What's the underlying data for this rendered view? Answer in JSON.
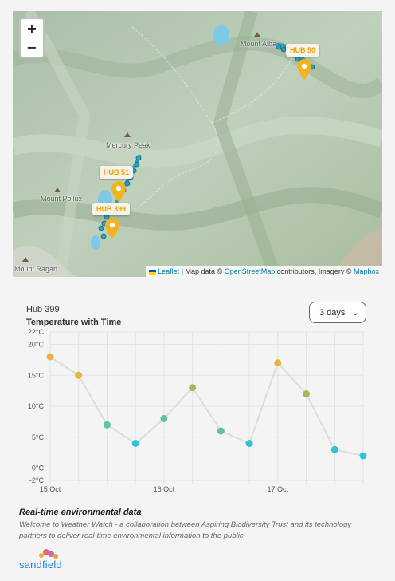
{
  "map": {
    "zoom_in": "+",
    "zoom_out": "−",
    "peaks": [
      "Mount Alba",
      "Mercury Peak",
      "Mount Pollux",
      "Mount Ragan"
    ],
    "hubs": [
      "HUB 50",
      "HUB 51",
      "HUB 399"
    ],
    "attribution": {
      "leaflet": "Leaflet",
      "text1": "| Map data ©",
      "osm": "OpenStreetMap",
      "text2": "contributors, Imagery ©",
      "mapbox": "Mapbox"
    },
    "colors": {
      "hub_accent": "#f3b320",
      "sensor_dot": "#2a9fc0",
      "link": "#0078a8"
    }
  },
  "panel": {
    "hub_name": "Hub 399",
    "chart_title": "Temperature with Time",
    "range": {
      "selected": "3 days",
      "chevron": "⌄"
    }
  },
  "chart_data": {
    "type": "line",
    "x": [
      "15 Oct 00:00",
      "15 Oct 06:00",
      "15 Oct 12:00",
      "15 Oct 18:00",
      "16 Oct 00:00",
      "16 Oct 06:00",
      "16 Oct 12:00",
      "16 Oct 18:00",
      "17 Oct 00:00",
      "17 Oct 06:00",
      "17 Oct 12:00",
      "17 Oct 18:00"
    ],
    "series": [
      {
        "values": [
          18,
          15,
          7,
          4,
          8,
          13,
          6,
          4,
          17,
          12,
          3,
          2
        ]
      }
    ],
    "y_ticks": [
      "22°C",
      "20°C",
      "15°C",
      "10°C",
      "5°C",
      "0°C",
      "-2°C"
    ],
    "x_ticks": [
      "15 Oct",
      "16 Oct",
      "17 Oct"
    ],
    "ylim": [
      -2,
      22
    ],
    "grid": true,
    "line_color": "#dddddd",
    "point_colors": {
      "warm": "#e9b43a",
      "mild": "#a7b85a",
      "cool": "#5fc2a5",
      "cold": "#2ec4d6"
    }
  },
  "info": {
    "title": "Real-time environmental data",
    "text": "Welcome to Weather Watch - a collaboration between Aspiring Biodiversity Trust and its technology partners to deliver real-time environmental information to the public."
  },
  "logo": {
    "text": "sandfield"
  }
}
